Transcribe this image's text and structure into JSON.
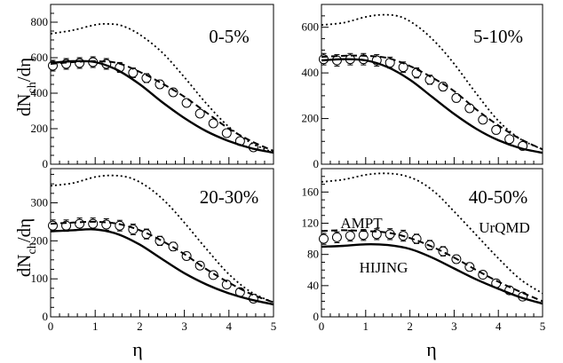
{
  "figure": {
    "ylabel": "dN_ch/dη",
    "ylabel_main": "dN",
    "ylabel_sub": "ch",
    "ylabel_tail": "/dη",
    "xlabel": "η"
  },
  "chart_data": [
    {
      "type": "line",
      "title": "0-5%",
      "xlabel": "η",
      "ylabel": "dN_ch/dη",
      "xlim": [
        0,
        5
      ],
      "ylim": [
        0,
        900
      ],
      "yticks": [
        0,
        200,
        400,
        600,
        800
      ],
      "series": [
        {
          "name": "",
          "style": "markers",
          "x": [
            0.05,
            0.35,
            0.65,
            0.95,
            1.25,
            1.55,
            1.85,
            2.15,
            2.45,
            2.75,
            3.05,
            3.35,
            3.65,
            3.95,
            4.25,
            4.55
          ],
          "y": [
            555,
            565,
            570,
            575,
            565,
            545,
            515,
            485,
            450,
            405,
            345,
            285,
            230,
            175,
            130,
            95
          ],
          "err": [
            30,
            30,
            30,
            30,
            30,
            28,
            27,
            25,
            23,
            21,
            19,
            17,
            15,
            13,
            11,
            10
          ]
        },
        {
          "name": "",
          "style": "dashed",
          "x": [
            0,
            0.5,
            1.0,
            1.5,
            2.0,
            2.5,
            3.0,
            3.5,
            4.0,
            4.5,
            5.0
          ],
          "y": [
            565,
            575,
            580,
            570,
            520,
            455,
            380,
            290,
            200,
            130,
            75
          ]
        },
        {
          "name": "",
          "style": "solid",
          "x": [
            0,
            0.5,
            1.0,
            1.5,
            2.0,
            2.5,
            3.0,
            3.5,
            4.0,
            4.5,
            5.0
          ],
          "y": [
            570,
            580,
            575,
            530,
            450,
            350,
            260,
            185,
            130,
            90,
            65
          ]
        },
        {
          "name": "",
          "style": "dotted",
          "x": [
            0,
            0.5,
            1.0,
            1.3,
            1.6,
            2.0,
            2.5,
            3.0,
            3.5,
            4.0,
            4.5,
            5.0
          ],
          "y": [
            735,
            755,
            785,
            790,
            780,
            730,
            630,
            490,
            340,
            210,
            120,
            65
          ]
        }
      ]
    },
    {
      "type": "line",
      "title": "5-10%",
      "xlabel": "η",
      "ylabel": "dN_ch/dη",
      "xlim": [
        0,
        5
      ],
      "ylim": [
        0,
        700
      ],
      "yticks": [
        0,
        200,
        400,
        600
      ],
      "series": [
        {
          "name": "",
          "style": "markers",
          "x": [
            0.05,
            0.35,
            0.65,
            0.95,
            1.25,
            1.55,
            1.85,
            2.15,
            2.45,
            2.75,
            3.05,
            3.35,
            3.65,
            3.95,
            4.25,
            4.55
          ],
          "y": [
            460,
            455,
            460,
            460,
            455,
            445,
            425,
            400,
            370,
            340,
            290,
            245,
            195,
            150,
            110,
            80
          ],
          "err": [
            25,
            25,
            25,
            25,
            25,
            24,
            23,
            22,
            20,
            18,
            16,
            14,
            12,
            11,
            10,
            8
          ]
        },
        {
          "name": "",
          "style": "dashed",
          "x": [
            0,
            0.5,
            1.0,
            1.5,
            2.0,
            2.5,
            3.0,
            3.5,
            4.0,
            4.5,
            5.0
          ],
          "y": [
            470,
            475,
            475,
            465,
            430,
            380,
            320,
            240,
            170,
            110,
            65
          ]
        },
        {
          "name": "",
          "style": "solid",
          "x": [
            0,
            0.5,
            1.0,
            1.5,
            2.0,
            2.5,
            3.0,
            3.5,
            4.0,
            4.5,
            5.0
          ],
          "y": [
            455,
            460,
            455,
            425,
            370,
            295,
            220,
            155,
            105,
            70,
            50
          ]
        },
        {
          "name": "",
          "style": "dotted",
          "x": [
            0,
            0.5,
            1.0,
            1.4,
            1.8,
            2.2,
            2.6,
            3.0,
            3.5,
            4.0,
            4.5,
            5.0
          ],
          "y": [
            610,
            620,
            645,
            655,
            645,
            600,
            530,
            440,
            310,
            190,
            110,
            65
          ]
        }
      ]
    },
    {
      "type": "line",
      "title": "20-30%",
      "xlabel": "η",
      "ylabel": "dN_ch/dη",
      "xlim": [
        0,
        5
      ],
      "ylim": [
        0,
        390
      ],
      "yticks": [
        0,
        100,
        200,
        300
      ],
      "xticks": [
        0,
        1,
        2,
        3,
        4,
        5
      ],
      "series": [
        {
          "name": "",
          "style": "markers",
          "x": [
            0.05,
            0.35,
            0.65,
            0.95,
            1.25,
            1.55,
            1.85,
            2.15,
            2.45,
            2.75,
            3.05,
            3.35,
            3.65,
            3.95,
            4.25,
            4.55
          ],
          "y": [
            240,
            240,
            245,
            245,
            243,
            240,
            230,
            218,
            200,
            185,
            160,
            135,
            110,
            85,
            65,
            48
          ],
          "err": [
            15,
            15,
            15,
            15,
            15,
            14,
            14,
            13,
            12,
            11,
            10,
            9,
            8,
            7,
            6,
            5
          ]
        },
        {
          "name": "",
          "style": "dashed",
          "x": [
            0,
            0.5,
            1.0,
            1.5,
            2.0,
            2.5,
            3.0,
            3.5,
            4.0,
            4.5,
            5.0
          ],
          "y": [
            245,
            248,
            250,
            245,
            228,
            200,
            165,
            125,
            90,
            60,
            38
          ]
        },
        {
          "name": "",
          "style": "solid",
          "x": [
            0,
            0.5,
            1.0,
            1.5,
            2.0,
            2.5,
            3.0,
            3.5,
            4.0,
            4.5,
            5.0
          ],
          "y": [
            225,
            228,
            230,
            218,
            190,
            152,
            115,
            85,
            62,
            45,
            33
          ]
        },
        {
          "name": "",
          "style": "dotted",
          "x": [
            0,
            0.5,
            1.0,
            1.4,
            1.8,
            2.2,
            2.6,
            3.0,
            3.5,
            4.0,
            4.5,
            5.0
          ],
          "y": [
            345,
            352,
            368,
            372,
            365,
            340,
            300,
            248,
            178,
            112,
            65,
            38
          ]
        }
      ]
    },
    {
      "type": "line",
      "title": "40-50%",
      "xlabel": "η",
      "ylabel": "dN_ch/dη",
      "xlim": [
        0,
        5
      ],
      "ylim": [
        0,
        190
      ],
      "yticks": [
        0,
        40,
        80,
        120,
        160
      ],
      "xticks": [
        0,
        1,
        2,
        3,
        4,
        5
      ],
      "series": [
        {
          "name": "",
          "style": "markers",
          "x": [
            0.05,
            0.35,
            0.65,
            0.95,
            1.25,
            1.55,
            1.85,
            2.15,
            2.45,
            2.75,
            3.05,
            3.35,
            3.65,
            3.95,
            4.25,
            4.55
          ],
          "y": [
            100,
            102,
            104,
            105,
            106,
            106,
            104,
            100,
            92,
            84,
            74,
            64,
            54,
            43,
            34,
            26
          ],
          "err": [
            7,
            7,
            7,
            7,
            7,
            7,
            7,
            6,
            6,
            6,
            5,
            5,
            4,
            4,
            3,
            3
          ]
        },
        {
          "name": "AMPT",
          "style": "dashed",
          "x": [
            0,
            0.5,
            1.0,
            1.5,
            2.0,
            2.5,
            3.0,
            3.5,
            4.0,
            4.5,
            5.0
          ],
          "y": [
            110,
            111,
            110,
            108,
            101,
            90,
            76,
            60,
            45,
            32,
            20
          ]
        },
        {
          "name": "HIJING",
          "style": "solid",
          "x": [
            0,
            0.5,
            1.0,
            1.5,
            2.0,
            2.5,
            3.0,
            3.5,
            4.0,
            4.5,
            5.0
          ],
          "y": [
            90,
            91,
            93,
            92,
            87,
            76,
            62,
            48,
            36,
            25,
            17
          ]
        },
        {
          "name": "UrQMD",
          "style": "dotted",
          "x": [
            0,
            0.5,
            1.0,
            1.4,
            1.8,
            2.2,
            2.6,
            3.0,
            3.5,
            4.0,
            4.5,
            5.0
          ],
          "y": [
            173,
            176,
            182,
            184,
            182,
            174,
            158,
            135,
            105,
            75,
            48,
            30
          ]
        }
      ],
      "annotations": [
        "AMPT",
        "UrQMD",
        "HIJING"
      ]
    }
  ]
}
